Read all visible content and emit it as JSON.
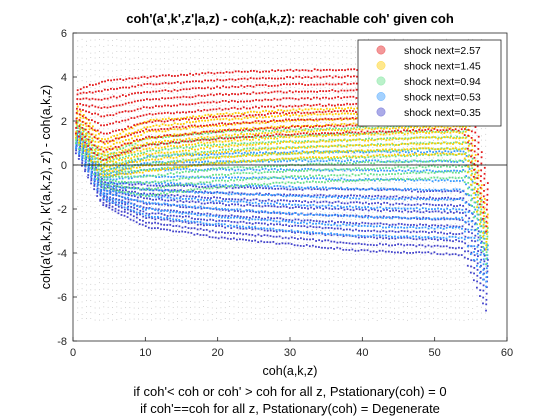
{
  "chart_data": {
    "type": "scatter",
    "title": "coh'(a',k',z'|a,z) - coh(a,k,z): reachable coh' given coh",
    "xlabel": "coh(a,k,z)",
    "ylabel": "coh(a'(a,k,z), k'(a,k,z), z') - coh(a,k,z)",
    "xlim": [
      0,
      60
    ],
    "ylim": [
      -8,
      6
    ],
    "xticks": [
      "0",
      "10",
      "20",
      "30",
      "40",
      "50",
      "60"
    ],
    "yticks": [
      "-8",
      "-6",
      "-4",
      "-2",
      "0",
      "2",
      "4",
      "6"
    ],
    "grid": false,
    "legend_placement": "top-right",
    "reference_line_y": 0,
    "series": [
      {
        "name": "shock next=2.57",
        "color": "#e41a1c",
        "ridge_x": [
          0,
          4,
          10,
          20,
          30,
          40,
          50,
          54,
          57.2
        ],
        "top_y": [
          3.4,
          3.8,
          4.0,
          4.2,
          4.3,
          4.35,
          4.4,
          4.4,
          -1.0
        ],
        "bottom_y": [
          1.6,
          0.2,
          0.9,
          1.2,
          1.4,
          1.5,
          1.6,
          1.6,
          -3.2
        ]
      },
      {
        "name": "shock next=1.45",
        "color": "#ffcc00",
        "ridge_x": [
          0,
          4,
          10,
          20,
          30,
          40,
          50,
          54,
          57.2
        ],
        "top_y": [
          2.8,
          1.1,
          2.0,
          2.3,
          2.5,
          2.6,
          2.7,
          2.7,
          -2.4
        ],
        "bottom_y": [
          1.4,
          -0.5,
          -0.3,
          0.1,
          0.3,
          0.4,
          0.5,
          0.5,
          -4.0
        ]
      },
      {
        "name": "shock next=0.94",
        "color": "#66e08a",
        "ridge_x": [
          0,
          4,
          10,
          20,
          30,
          40,
          50,
          54,
          57.2
        ],
        "top_y": [
          2.2,
          0.4,
          1.2,
          1.5,
          1.6,
          1.7,
          1.8,
          1.8,
          -3.0
        ],
        "bottom_y": [
          1.2,
          -1.0,
          -1.4,
          -1.0,
          -0.8,
          -0.7,
          -0.6,
          -0.6,
          -4.6
        ]
      },
      {
        "name": "shock next=0.53",
        "color": "#3399ff",
        "ridge_x": [
          0,
          4,
          10,
          20,
          30,
          40,
          50,
          54,
          57.2
        ],
        "top_y": [
          1.9,
          -0.3,
          0.4,
          0.5,
          0.6,
          0.6,
          0.6,
          0.6,
          -3.8
        ],
        "bottom_y": [
          1.0,
          -1.5,
          -2.3,
          -2.7,
          -3.0,
          -3.2,
          -3.3,
          -3.3,
          -5.6
        ]
      },
      {
        "name": "shock next=0.35",
        "color": "#4444cc",
        "ridge_x": [
          0,
          4,
          10,
          20,
          30,
          40,
          50,
          54,
          57.2
        ],
        "top_y": [
          1.7,
          -0.8,
          -0.9,
          -1.0,
          -1.1,
          -1.1,
          -1.2,
          -1.2,
          -4.4
        ],
        "bottom_y": [
          0.8,
          -1.8,
          -2.8,
          -3.3,
          -3.6,
          -3.9,
          -4.0,
          -4.1,
          -6.7
        ]
      }
    ],
    "notes": [
      "if coh'< coh or coh' > coh for all z, Pstationary(coh) = 0",
      "if coh'==coh for all z, Pstationary(coh) = Degenerate"
    ]
  }
}
